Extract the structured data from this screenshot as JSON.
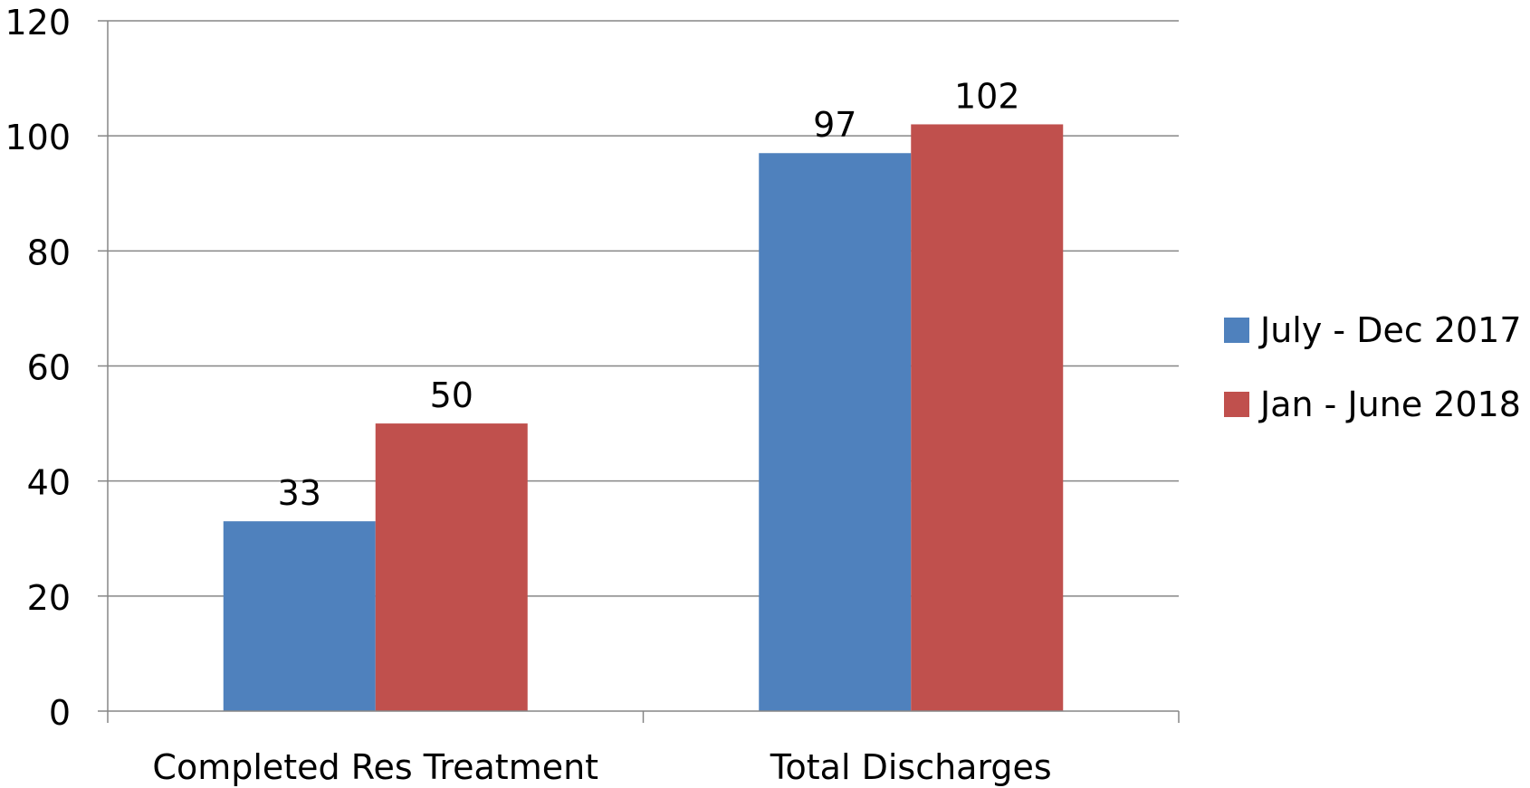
{
  "chart_data": {
    "type": "bar",
    "title": "",
    "xlabel": "",
    "ylabel": "",
    "categories": [
      "Completed Res Treatment",
      "Total Discharges"
    ],
    "series": [
      {
        "name": "July - Dec 2017",
        "values": [
          33,
          97
        ],
        "color": "#4F81BD"
      },
      {
        "name": "Jan - June 2018",
        "values": [
          50,
          102
        ],
        "color": "#C0504D"
      }
    ],
    "ylim": [
      0,
      120
    ],
    "yticks": [
      0,
      20,
      40,
      60,
      80,
      100,
      120
    ],
    "grid": true,
    "legend_position": "right",
    "data_labels": true
  }
}
